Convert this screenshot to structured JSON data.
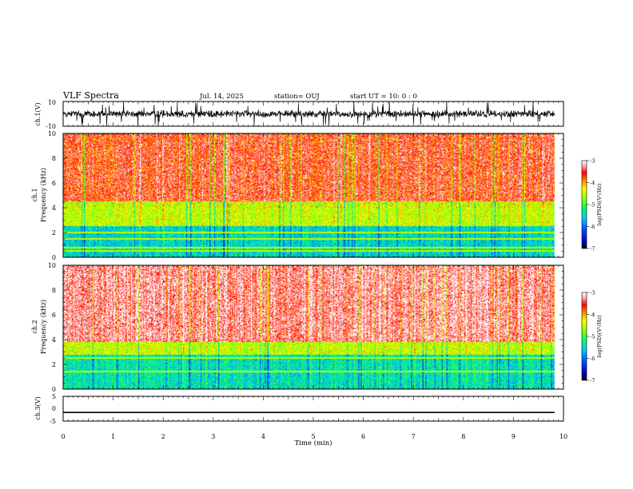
{
  "header": {
    "title": "VLF Spectra",
    "date": "Jul. 14, 2025",
    "station": "station= OUJ",
    "start": "start UT =  10: 0 : 0"
  },
  "chart_data": [
    {
      "type": "line",
      "panel": "ch1-waveform",
      "ylabel": "ch.1(V)",
      "ylim": [
        -10,
        10
      ],
      "yticks": [
        "10",
        "-10"
      ],
      "xlim": [
        0,
        10
      ],
      "description_of_signal": "noisy waveform mostly between -3 and 3 V with spikes to about -10 and 10 V",
      "series": [
        {
          "values_range": [
            -10,
            10
          ],
          "baseline": 0
        }
      ]
    },
    {
      "type": "heatmap",
      "panel": "ch1-spectrogram",
      "ylabel": "ch.1\nFrequency (kHz)",
      "ylabel_lines": [
        "ch.1",
        "Frequency (kHz)"
      ],
      "ylim": [
        0,
        10
      ],
      "yticks": [
        "0",
        "2",
        "4",
        "6",
        "8",
        "10"
      ],
      "xlim": [
        0,
        10
      ],
      "colorbar": {
        "label": "log(PSD)(V²/Hz)",
        "range": [
          -7,
          -3
        ],
        "ticks": [
          "-3",
          "-4",
          "-5",
          "-6",
          "-7"
        ]
      },
      "bands": [
        {
          "f_low": 0,
          "f_high": 2.5,
          "level": -5.5
        },
        {
          "f_low": 2.5,
          "f_high": 4.5,
          "level": -4.5
        },
        {
          "f_low": 4.5,
          "f_high": 10,
          "level": -3.6
        }
      ],
      "horizontal_lines_khz": [
        0.5,
        0.75,
        1.5,
        2.0
      ]
    },
    {
      "type": "heatmap",
      "panel": "ch2-spectrogram",
      "ylabel": "ch.2\nFrequency (kHz)",
      "ylabel_lines": [
        "ch.2",
        "Frequency (kHz)"
      ],
      "ylim": [
        0,
        10
      ],
      "yticks": [
        "0",
        "2",
        "4",
        "6",
        "8",
        "10"
      ],
      "xlim": [
        0,
        10
      ],
      "colorbar": {
        "label": "log(PSD)(V²/Hz)",
        "range": [
          -7,
          -3
        ],
        "ticks": [
          "-3",
          "-4",
          "-5",
          "-6",
          "-7"
        ]
      },
      "bands": [
        {
          "f_low": 0,
          "f_high": 2.8,
          "level": -5.4
        },
        {
          "f_low": 2.8,
          "f_high": 3.8,
          "level": -4.5
        },
        {
          "f_low": 3.8,
          "f_high": 10,
          "level": -3.3
        }
      ],
      "horizontal_lines_khz": [
        1.4,
        2.5
      ]
    },
    {
      "type": "line",
      "panel": "ch3-waveform",
      "ylabel": "ch.3(V)",
      "ylim": [
        -5,
        5
      ],
      "yticks": [
        "5",
        "0",
        "-5"
      ],
      "xlim": [
        0,
        10
      ],
      "series": [
        {
          "constant_value": -1.5
        }
      ]
    }
  ],
  "xaxis": {
    "label": "Time (min)",
    "ticks": [
      "0",
      "1",
      "2",
      "3",
      "4",
      "5",
      "6",
      "7",
      "8",
      "9",
      "10"
    ],
    "range": [
      0,
      10
    ],
    "data_end": 9.82
  }
}
